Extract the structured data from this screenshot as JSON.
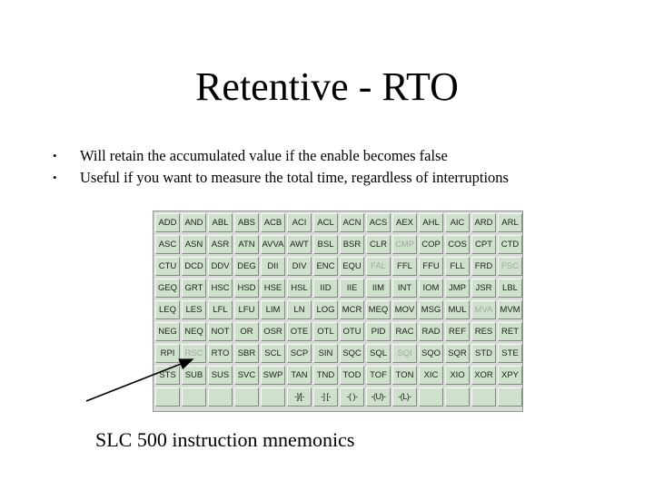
{
  "slide": {
    "title": "Retentive - RTO",
    "bullets": [
      "Will retain the accumulated value if the enable becomes false",
      "Useful if you want to measure the total time, regardless of interruptions"
    ],
    "bullet_marker": "•",
    "caption": "SLC 500 instruction mnemonics"
  },
  "palette": {
    "rows": [
      [
        "ADD",
        "AND",
        "ABL",
        "ABS",
        "ACB",
        "ACI",
        "ACL",
        "ACN",
        "ACS",
        "AEX",
        "AHL",
        "AIC",
        "ARD",
        "ARL"
      ],
      [
        "ASC",
        "ASN",
        "ASR",
        "ATN",
        "AVVA",
        "AWT",
        "BSL",
        "BSR",
        "CLR",
        "CMP",
        "COP",
        "COS",
        "CPT",
        "CTD"
      ],
      [
        "CTU",
        "DCD",
        "DDV",
        "DEG",
        "DII",
        "DIV",
        "ENC",
        "EQU",
        "FAL",
        "FFL",
        "FFU",
        "FLL",
        "FRD",
        "FSC"
      ],
      [
        "GEQ",
        "GRT",
        "HSC",
        "HSD",
        "HSE",
        "HSL",
        "IID",
        "IIE",
        "IIM",
        "INT",
        "IOM",
        "JMP",
        "JSR",
        "LBL"
      ],
      [
        "LEQ",
        "LES",
        "LFL",
        "LFU",
        "LIM",
        "LN",
        "LOG",
        "MCR",
        "MEQ",
        "MOV",
        "MSG",
        "MUL",
        "MVA",
        "MVM"
      ],
      [
        "NEG",
        "NEQ",
        "NOT",
        "OR",
        "OSR",
        "OTE",
        "OTL",
        "OTU",
        "PID",
        "RAC",
        "RAD",
        "REF",
        "RES",
        "RET"
      ],
      [
        "RPI",
        "RSC",
        "RTO",
        "SBR",
        "SCL",
        "SCP",
        "SIN",
        "SQC",
        "SQL",
        "SQI",
        "SQO",
        "SQR",
        "STD",
        "STE"
      ],
      [
        "STS",
        "SUB",
        "SUS",
        "SVC",
        "SWP",
        "TAN",
        "TND",
        "TOD",
        "TOF",
        "TON",
        "XIC",
        "XIO",
        "XOR",
        "XPY"
      ],
      [
        "",
        "",
        "",
        "",
        "",
        "-]/[-",
        "-] [-",
        "-( )-",
        "-(U)-",
        "-(L)-",
        "",
        "",
        "",
        ""
      ]
    ],
    "disabled": [
      "CMP",
      "FAL",
      "FSC",
      "MVA",
      "RSC",
      "SQI"
    ],
    "highlighted": "RTO",
    "colors": {
      "background": "#d7dcd7",
      "key": "#cfe0cc",
      "key_text": "#202020",
      "key_disabled_text": "#a3aaa3"
    }
  }
}
